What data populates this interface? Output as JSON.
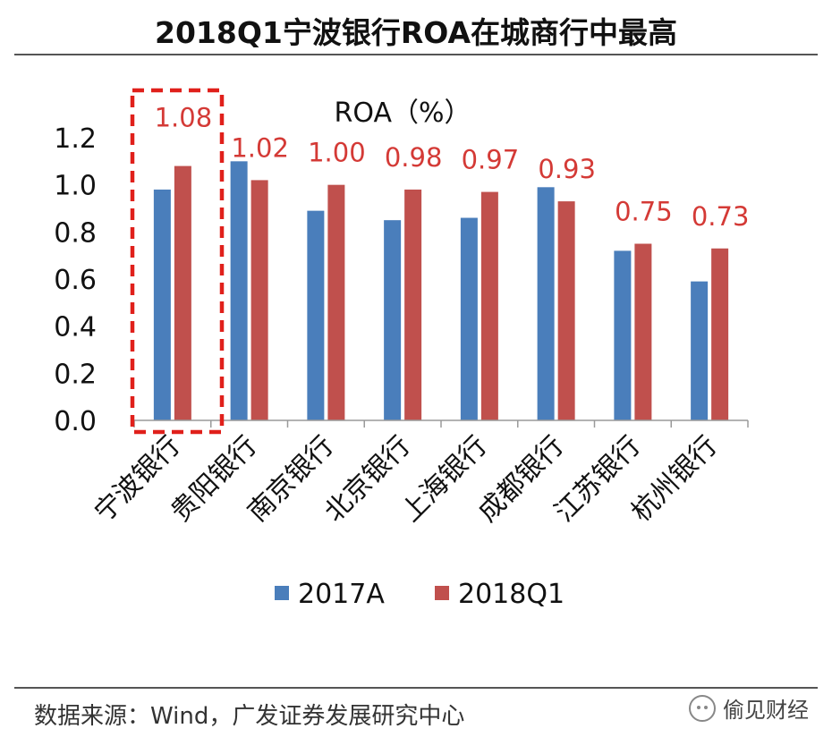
{
  "page": {
    "title": "2018Q1宁波银行ROA在城商行中最高",
    "source": "数据来源：Wind，广发证券发展研究中心",
    "watermark": "偷见财经"
  },
  "chart_data": {
    "type": "bar",
    "title": "ROA（%）",
    "categories": [
      "宁波银行",
      "贵阳银行",
      "南京银行",
      "北京银行",
      "上海银行",
      "成都银行",
      "江苏银行",
      "杭州银行"
    ],
    "series": [
      {
        "name": "2017A",
        "color": "#4a7ebb",
        "values": [
          0.98,
          1.1,
          0.89,
          0.85,
          0.86,
          0.99,
          0.72,
          0.59
        ]
      },
      {
        "name": "2018Q1",
        "color": "#c0504d",
        "values": [
          1.08,
          1.02,
          1.0,
          0.98,
          0.97,
          0.93,
          0.75,
          0.73
        ]
      }
    ],
    "data_labels": [
      "1.08",
      "1.02",
      "1.00",
      "0.98",
      "0.97",
      "0.93",
      "0.75",
      "0.73"
    ],
    "data_label_color": "#d43a36",
    "y_ticks": [
      "0.0",
      "0.2",
      "0.4",
      "0.6",
      "0.8",
      "1.0",
      "1.2"
    ],
    "ylim": [
      0,
      1.2
    ],
    "highlight_category": "宁波银行",
    "highlight_color": "#e0201b",
    "legend_position": "bottom"
  }
}
